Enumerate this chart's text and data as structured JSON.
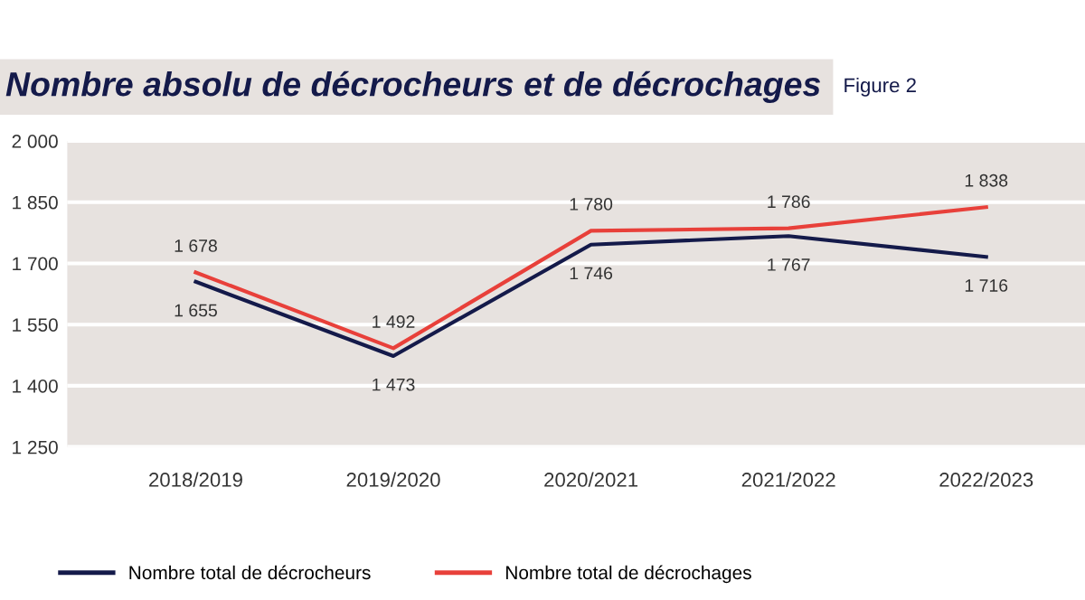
{
  "chart_data": {
    "type": "line",
    "title": "Nombre absolu de décrocheurs et de décrochages",
    "annotations": [
      "Figure 2"
    ],
    "categories": [
      "2018/2019",
      "2019/2020",
      "2020/2021",
      "2021/2022",
      "2022/2023"
    ],
    "series": [
      {
        "name": "Nombre total de décrocheurs",
        "color": "#141a4a",
        "values": [
          1655,
          1473,
          1746,
          1767,
          1716
        ],
        "value_labels": [
          "1 655",
          "1 473",
          "1 746",
          "1 767",
          "1 716"
        ]
      },
      {
        "name": "Nombre total de décrochages",
        "color": "#e8403a",
        "values": [
          1678,
          1492,
          1780,
          1786,
          1838
        ],
        "value_labels": [
          "1 678",
          "1 492",
          "1 780",
          "1 786",
          "1 838"
        ]
      }
    ],
    "ylim": [
      1250,
      2000
    ],
    "yticks": [
      {
        "value": 1250,
        "label": "1 250"
      },
      {
        "value": 1400,
        "label": "1 400"
      },
      {
        "value": 1550,
        "label": "1 550"
      },
      {
        "value": 1700,
        "label": "1 700"
      },
      {
        "value": 1850,
        "label": "1 850"
      },
      {
        "value": 2000,
        "label": "2 000"
      }
    ],
    "grid": "y",
    "legend": "bottom",
    "marker": "none",
    "line_style": "solid"
  }
}
